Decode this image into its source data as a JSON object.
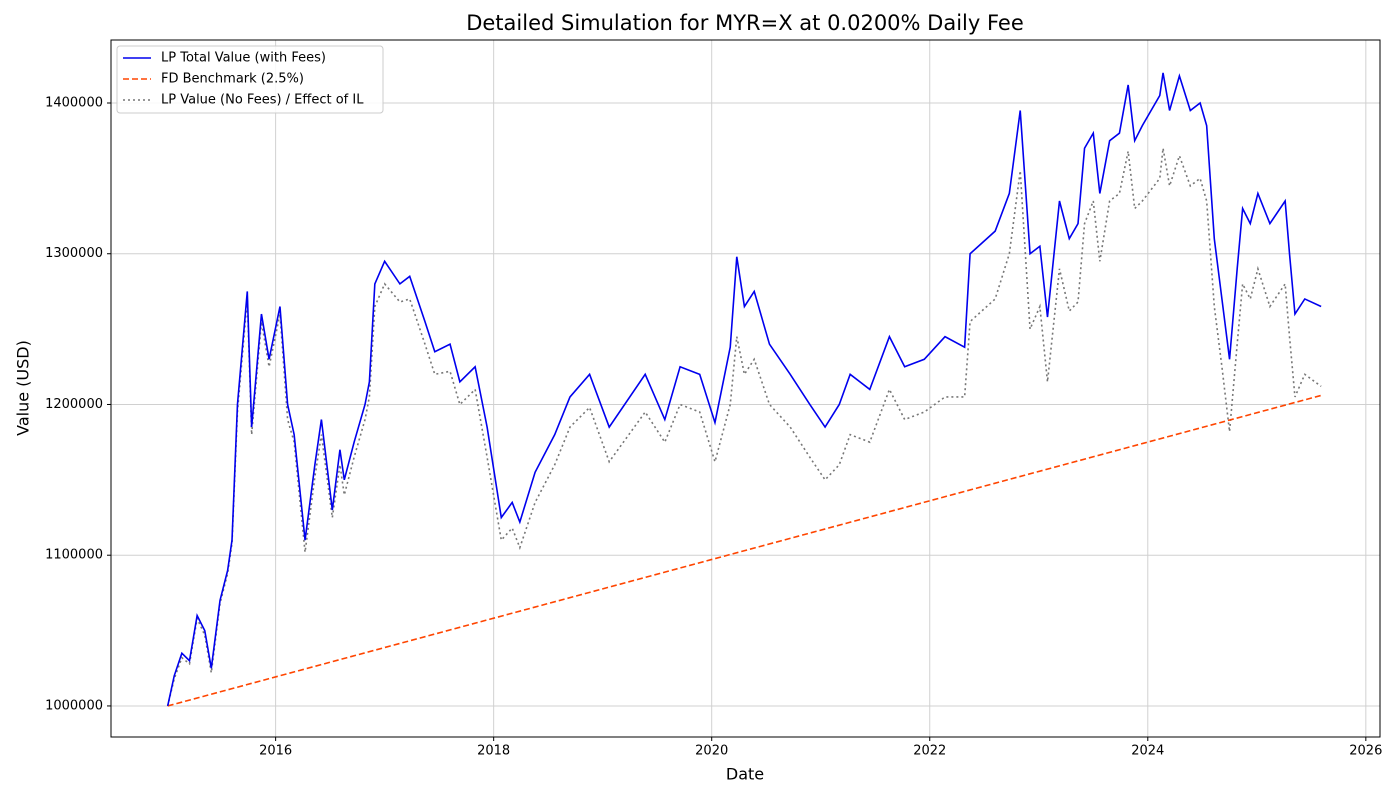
{
  "chart_data": {
    "type": "line",
    "title": "Detailed Simulation for MYR=X at 0.0200% Daily Fee",
    "xlabel": "Date",
    "ylabel": "Value (USD)",
    "x": [
      2015.01,
      2015.07,
      2015.14,
      2015.21,
      2015.28,
      2015.35,
      2015.41,
      2015.49,
      2015.56,
      2015.6,
      2015.65,
      2015.74,
      2015.78,
      2015.87,
      2015.94,
      2016.04,
      2016.11,
      2016.17,
      2016.27,
      2016.36,
      2016.42,
      2016.52,
      2016.59,
      2016.63,
      2016.72,
      2016.82,
      2016.86,
      2016.91,
      2017.0,
      2017.14,
      2017.23,
      2017.37,
      2017.46,
      2017.6,
      2017.69,
      2017.83,
      2017.94,
      2018.07,
      2018.17,
      2018.24,
      2018.38,
      2018.56,
      2018.7,
      2018.88,
      2019.06,
      2019.39,
      2019.57,
      2019.71,
      2019.89,
      2020.03,
      2020.17,
      2020.23,
      2020.3,
      2020.39,
      2020.53,
      2020.72,
      2020.9,
      2021.04,
      2021.17,
      2021.27,
      2021.45,
      2021.63,
      2021.77,
      2021.95,
      2022.14,
      2022.32,
      2022.37,
      2022.6,
      2022.73,
      2022.83,
      2022.92,
      2023.01,
      2023.08,
      2023.19,
      2023.28,
      2023.36,
      2023.42,
      2023.5,
      2023.56,
      2023.65,
      2023.74,
      2023.82,
      2023.88,
      2023.95,
      2024.11,
      2024.14,
      2024.2,
      2024.29,
      2024.39,
      2024.48,
      2024.54,
      2024.61,
      2024.68,
      2024.75,
      2024.82,
      2024.87,
      2024.94,
      2025.01,
      2025.12,
      2025.26,
      2025.3,
      2025.35,
      2025.44,
      2025.59
    ],
    "series": [
      {
        "name": "LP Total Value (with Fees)",
        "color": "#0000ee",
        "linestyle": "solid",
        "values": [
          1000000,
          1020000,
          1035000,
          1030000,
          1060000,
          1050000,
          1025000,
          1070000,
          1090000,
          1110000,
          1200000,
          1275000,
          1185000,
          1260000,
          1230000,
          1265000,
          1200000,
          1180000,
          1110000,
          1160000,
          1190000,
          1130000,
          1170000,
          1150000,
          1175000,
          1200000,
          1215000,
          1280000,
          1295000,
          1280000,
          1285000,
          1255000,
          1235000,
          1240000,
          1215000,
          1225000,
          1185000,
          1125000,
          1135000,
          1122000,
          1155000,
          1180000,
          1205000,
          1220000,
          1185000,
          1220000,
          1190000,
          1225000,
          1220000,
          1188000,
          1238000,
          1298000,
          1265000,
          1275000,
          1240000,
          1220000,
          1200000,
          1185000,
          1200000,
          1220000,
          1210000,
          1245000,
          1225000,
          1230000,
          1245000,
          1238000,
          1300000,
          1315000,
          1340000,
          1395000,
          1300000,
          1305000,
          1258000,
          1335000,
          1310000,
          1320000,
          1370000,
          1380000,
          1340000,
          1375000,
          1380000,
          1412000,
          1375000,
          1385000,
          1405000,
          1420000,
          1395000,
          1418000,
          1395000,
          1400000,
          1385000,
          1310000,
          1270000,
          1230000,
          1290000,
          1330000,
          1320000,
          1340000,
          1320000,
          1335000,
          1300000,
          1260000,
          1270000,
          1265000
        ]
      },
      {
        "name": "FD Benchmark (2.5%)",
        "color": "#ff4500",
        "linestyle": "dashed",
        "x": [
          2015.01,
          2025.59
        ],
        "values": [
          1000000,
          1206000
        ]
      },
      {
        "name": "LP Value (No Fees) / Effect of IL",
        "color": "#777777",
        "linestyle": "dotted",
        "values": [
          1000000,
          1018000,
          1032000,
          1028000,
          1058000,
          1047000,
          1022000,
          1068000,
          1088000,
          1108000,
          1195000,
          1270000,
          1180000,
          1255000,
          1225000,
          1260000,
          1190000,
          1175000,
          1102000,
          1152000,
          1180000,
          1125000,
          1160000,
          1140000,
          1165000,
          1190000,
          1205000,
          1265000,
          1280000,
          1268000,
          1270000,
          1240000,
          1220000,
          1222000,
          1200000,
          1210000,
          1165000,
          1110000,
          1118000,
          1105000,
          1135000,
          1160000,
          1185000,
          1198000,
          1162000,
          1195000,
          1175000,
          1200000,
          1195000,
          1162000,
          1200000,
          1245000,
          1220000,
          1230000,
          1200000,
          1185000,
          1165000,
          1150000,
          1160000,
          1180000,
          1175000,
          1210000,
          1190000,
          1195000,
          1205000,
          1205000,
          1255000,
          1270000,
          1300000,
          1355000,
          1250000,
          1265000,
          1215000,
          1290000,
          1262000,
          1268000,
          1320000,
          1335000,
          1295000,
          1335000,
          1340000,
          1368000,
          1330000,
          1335000,
          1350000,
          1370000,
          1345000,
          1365000,
          1345000,
          1350000,
          1335000,
          1265000,
          1225000,
          1182000,
          1240000,
          1280000,
          1270000,
          1290000,
          1265000,
          1280000,
          1245000,
          1205000,
          1220000,
          1212000
        ]
      }
    ],
    "xlim": [
      2014.49,
      2026.13
    ],
    "xticks": [
      2016,
      2018,
      2020,
      2022,
      2024,
      2026
    ],
    "ylim": [
      979400,
      1441800
    ],
    "yticks": [
      1000000,
      1100000,
      1200000,
      1300000,
      1400000
    ],
    "grid": true,
    "legend": "upper-left"
  }
}
